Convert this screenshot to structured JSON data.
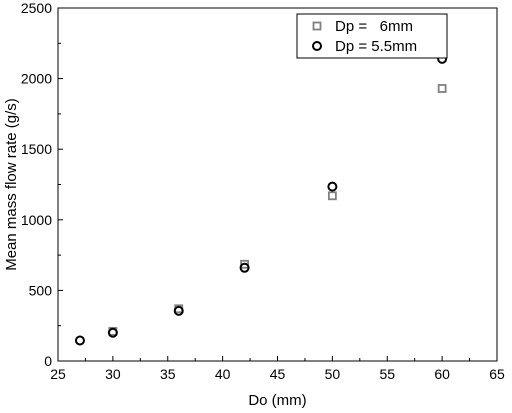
{
  "chart_data": {
    "type": "scatter",
    "xlabel": "Do (mm)",
    "ylabel": "Mean mass flow rate (g/s)",
    "xlim": [
      25,
      65
    ],
    "ylim": [
      0,
      2500
    ],
    "xticks": [
      25,
      30,
      35,
      40,
      45,
      50,
      55,
      60,
      65
    ],
    "yticks": [
      0,
      500,
      1000,
      1500,
      2000,
      2500
    ],
    "grid": false,
    "legend_position": "top-right",
    "series": [
      {
        "name": "Dp =   6mm",
        "marker": "square",
        "color": "#808080",
        "points": [
          {
            "x": 30,
            "y": 210
          },
          {
            "x": 36,
            "y": 370
          },
          {
            "x": 42,
            "y": 685
          },
          {
            "x": 50,
            "y": 1170
          },
          {
            "x": 60,
            "y": 1930
          }
        ]
      },
      {
        "name": "Dp = 5.5mm",
        "marker": "circle",
        "color": "#000000",
        "points": [
          {
            "x": 27,
            "y": 145
          },
          {
            "x": 30,
            "y": 200
          },
          {
            "x": 36,
            "y": 355
          },
          {
            "x": 42,
            "y": 660
          },
          {
            "x": 50,
            "y": 1235
          },
          {
            "x": 60,
            "y": 2140
          }
        ]
      }
    ]
  }
}
